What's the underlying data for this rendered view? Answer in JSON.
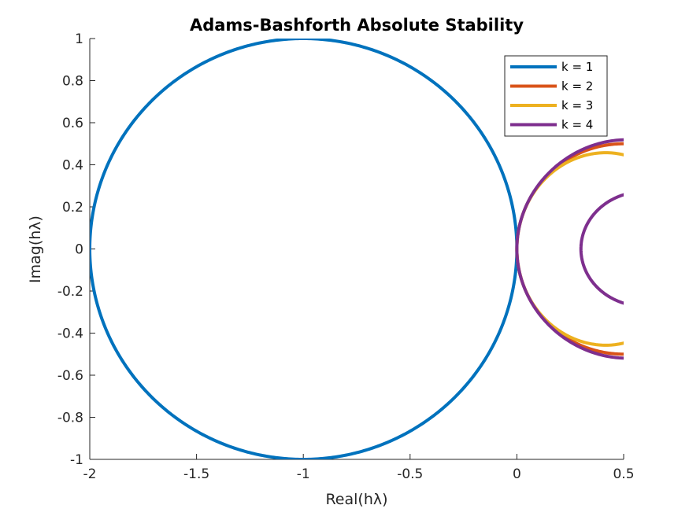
{
  "chart_data": {
    "type": "line",
    "title": "Adams-Bashforth Absolute Stability",
    "xlabel": "Real(hλ)",
    "ylabel": "Imag(hλ)",
    "xlim": [
      -2,
      0.5
    ],
    "ylim": [
      -1,
      1
    ],
    "xticks": [
      -2,
      -1.5,
      -1,
      -0.5,
      0,
      0.5
    ],
    "xtick_labels": [
      "-2",
      "-1.5",
      "-1",
      "-0.5",
      "0",
      "0.5"
    ],
    "yticks": [
      -1,
      -0.8,
      -0.6,
      -0.4,
      -0.2,
      0,
      0.2,
      0.4,
      0.6,
      0.8,
      1
    ],
    "ytick_labels": [
      "-1",
      "-0.8",
      "-0.6",
      "-0.4",
      "-0.2",
      "0",
      "0.2",
      "0.4",
      "0.6",
      "0.8",
      "1"
    ],
    "grid": false,
    "legend_position": "top-right",
    "series": [
      {
        "name": "k = 1",
        "color": "#0072BD",
        "order": 1
      },
      {
        "name": "k = 2",
        "color": "#D95319",
        "order": 2
      },
      {
        "name": "k = 3",
        "color": "#EDB120",
        "order": 3
      },
      {
        "name": "k = 4",
        "color": "#7E2F8E",
        "order": 4
      }
    ]
  }
}
